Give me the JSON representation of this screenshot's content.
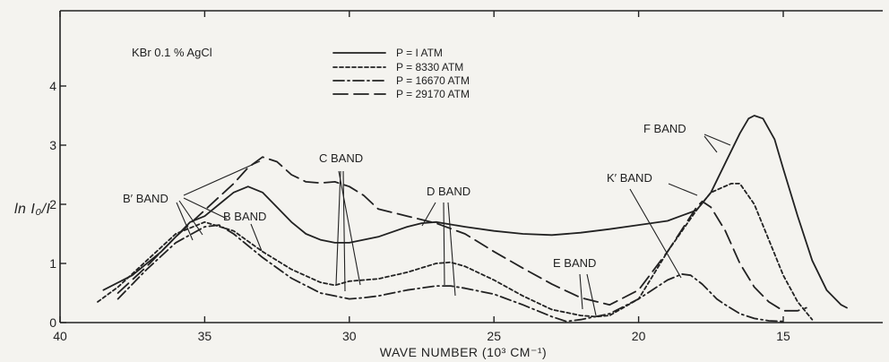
{
  "chart_data": {
    "type": "line",
    "title": "",
    "sample_label": "KBr 0.1 % AgCl",
    "xlabel": "WAVE NUMBER (10³ CM⁻¹)",
    "ylabel": "ln I₀/I",
    "xlim": [
      40,
      12
    ],
    "ylim": [
      0,
      4.5
    ],
    "x_ticks": [
      40,
      35,
      30,
      25,
      20,
      15
    ],
    "y_ticks": [
      0,
      1,
      2,
      3,
      4
    ],
    "grid": false,
    "legend_position": "top-center",
    "series": [
      {
        "name": "P = I ATM",
        "dash": "solid",
        "points": [
          [
            38.5,
            0.55
          ],
          [
            37.5,
            0.8
          ],
          [
            36.5,
            1.2
          ],
          [
            35.5,
            1.7
          ],
          [
            35,
            1.8
          ],
          [
            34.5,
            2.0
          ],
          [
            34,
            2.2
          ],
          [
            33.5,
            2.3
          ],
          [
            33,
            2.2
          ],
          [
            32.5,
            1.95
          ],
          [
            32,
            1.7
          ],
          [
            31.5,
            1.5
          ],
          [
            31,
            1.4
          ],
          [
            30.5,
            1.35
          ],
          [
            30,
            1.35
          ],
          [
            29,
            1.45
          ],
          [
            28,
            1.62
          ],
          [
            27.5,
            1.68
          ],
          [
            27,
            1.7
          ],
          [
            26,
            1.62
          ],
          [
            25,
            1.55
          ],
          [
            24,
            1.5
          ],
          [
            23,
            1.48
          ],
          [
            22,
            1.52
          ],
          [
            21,
            1.58
          ],
          [
            20,
            1.65
          ],
          [
            19,
            1.72
          ],
          [
            18,
            1.9
          ],
          [
            17.5,
            2.2
          ],
          [
            17,
            2.7
          ],
          [
            16.5,
            3.2
          ],
          [
            16.2,
            3.45
          ],
          [
            16,
            3.5
          ],
          [
            15.7,
            3.45
          ],
          [
            15.3,
            3.1
          ],
          [
            15,
            2.6
          ],
          [
            14.5,
            1.8
          ],
          [
            14,
            1.05
          ],
          [
            13.5,
            0.55
          ],
          [
            13,
            0.3
          ],
          [
            12.8,
            0.25
          ]
        ]
      },
      {
        "name": "P = 8330 ATM",
        "dash": "dotted",
        "points": [
          [
            38.7,
            0.35
          ],
          [
            38,
            0.6
          ],
          [
            37,
            1.05
          ],
          [
            36,
            1.5
          ],
          [
            35,
            1.7
          ],
          [
            34,
            1.55
          ],
          [
            33,
            1.2
          ],
          [
            32,
            0.9
          ],
          [
            31,
            0.68
          ],
          [
            30.5,
            0.63
          ],
          [
            30,
            0.7
          ],
          [
            29.5,
            0.72
          ],
          [
            29,
            0.74
          ],
          [
            28,
            0.85
          ],
          [
            27,
            1.0
          ],
          [
            26.5,
            1.02
          ],
          [
            26,
            0.95
          ],
          [
            25,
            0.72
          ],
          [
            24,
            0.45
          ],
          [
            23,
            0.22
          ],
          [
            22,
            0.12
          ],
          [
            21.5,
            0.1
          ],
          [
            21,
            0.12
          ],
          [
            20,
            0.4
          ],
          [
            19,
            1.2
          ],
          [
            18,
            1.9
          ],
          [
            17.5,
            2.2
          ],
          [
            16.8,
            2.35
          ],
          [
            16.5,
            2.35
          ],
          [
            16,
            2.0
          ],
          [
            15.5,
            1.4
          ],
          [
            15,
            0.8
          ],
          [
            14.5,
            0.35
          ],
          [
            14,
            0.05
          ]
        ]
      },
      {
        "name": "P = 16670 ATM",
        "dash": "dash-dot",
        "points": [
          [
            38,
            0.4
          ],
          [
            37,
            0.9
          ],
          [
            36,
            1.35
          ],
          [
            35,
            1.62
          ],
          [
            34.5,
            1.65
          ],
          [
            34,
            1.5
          ],
          [
            33,
            1.1
          ],
          [
            32,
            0.75
          ],
          [
            31,
            0.5
          ],
          [
            30,
            0.4
          ],
          [
            29.5,
            0.42
          ],
          [
            29,
            0.45
          ],
          [
            28,
            0.55
          ],
          [
            27,
            0.62
          ],
          [
            26.5,
            0.62
          ],
          [
            26,
            0.58
          ],
          [
            25,
            0.48
          ],
          [
            24,
            0.3
          ],
          [
            23,
            0.1
          ],
          [
            22.5,
            0.02
          ],
          [
            22,
            0.05
          ],
          [
            21,
            0.15
          ],
          [
            20,
            0.4
          ],
          [
            19,
            0.72
          ],
          [
            18.5,
            0.82
          ],
          [
            18.2,
            0.8
          ],
          [
            17.8,
            0.65
          ],
          [
            17.3,
            0.4
          ],
          [
            17,
            0.3
          ],
          [
            16.5,
            0.15
          ],
          [
            16,
            0.07
          ],
          [
            15.5,
            0.03
          ],
          [
            15,
            0.02
          ]
        ]
      },
      {
        "name": "P = 29170 ATM",
        "dash": "long-dash",
        "points": [
          [
            38,
            0.5
          ],
          [
            37,
            0.95
          ],
          [
            36,
            1.45
          ],
          [
            35,
            1.9
          ],
          [
            34,
            2.35
          ],
          [
            33.5,
            2.62
          ],
          [
            33,
            2.8
          ],
          [
            32.5,
            2.72
          ],
          [
            32,
            2.5
          ],
          [
            31.5,
            2.38
          ],
          [
            31,
            2.36
          ],
          [
            30.5,
            2.38
          ],
          [
            30,
            2.3
          ],
          [
            29.5,
            2.15
          ],
          [
            29,
            1.92
          ],
          [
            28,
            1.8
          ],
          [
            27,
            1.68
          ],
          [
            26,
            1.5
          ],
          [
            25,
            1.2
          ],
          [
            24,
            0.92
          ],
          [
            23,
            0.65
          ],
          [
            22,
            0.42
          ],
          [
            21,
            0.3
          ],
          [
            20,
            0.55
          ],
          [
            19,
            1.2
          ],
          [
            18,
            1.95
          ],
          [
            17.8,
            2.05
          ],
          [
            17.5,
            1.95
          ],
          [
            17,
            1.55
          ],
          [
            16.5,
            1.0
          ],
          [
            16,
            0.6
          ],
          [
            15.5,
            0.35
          ],
          [
            15,
            0.2
          ],
          [
            14.5,
            0.2
          ],
          [
            14.2,
            0.25
          ]
        ]
      }
    ],
    "annotations": [
      {
        "text": "C BAND"
      },
      {
        "text": "B′ BAND"
      },
      {
        "text": "B BAND"
      },
      {
        "text": "D BAND"
      },
      {
        "text": "F BAND"
      },
      {
        "text": "K′ BAND"
      },
      {
        "text": "E BAND"
      }
    ]
  }
}
